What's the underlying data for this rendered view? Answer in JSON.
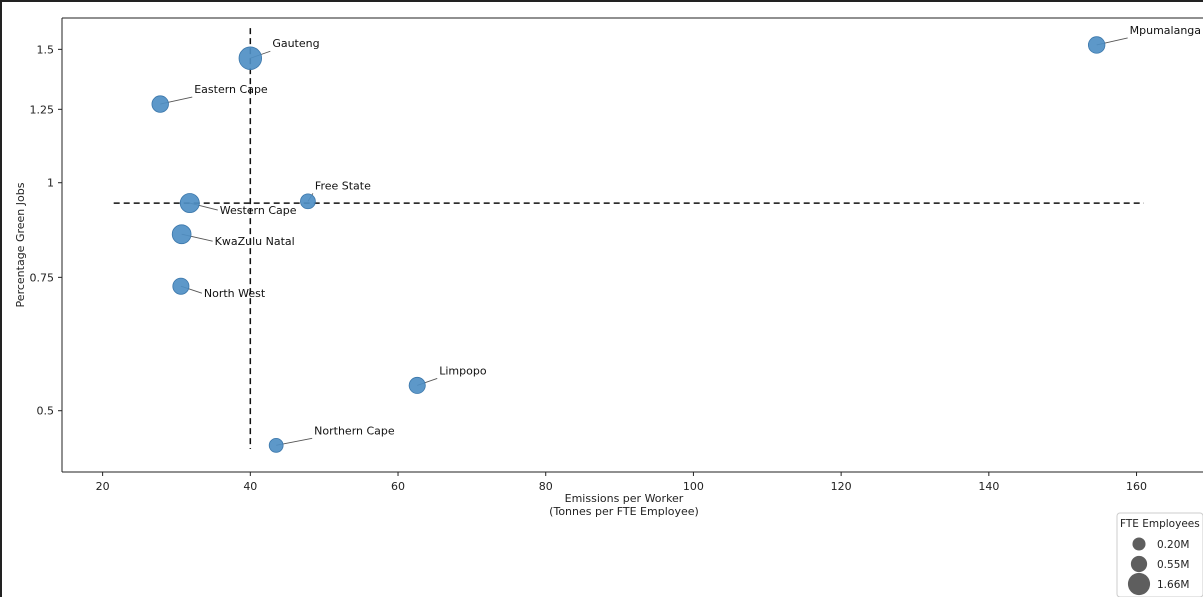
{
  "chart_data": {
    "type": "scatter",
    "xlabel": "Emissions per Worker",
    "xlabel_line2": "(Tonnes per FTE Employee)",
    "ylabel": "Percentage Green Jobs",
    "y_scale": "log",
    "xlim": [
      14.5,
      169
    ],
    "ylim": [
      0.415,
      1.65
    ],
    "x_ticks": [
      20,
      40,
      60,
      80,
      100,
      120,
      140,
      160
    ],
    "y_ticks": [
      {
        "value": 0.5,
        "label": "0.5"
      },
      {
        "value": 0.75,
        "label": "0.75"
      },
      {
        "value": 1.0,
        "label": "1"
      },
      {
        "value": 1.25,
        "label": "1.25"
      },
      {
        "value": 1.5,
        "label": "1.5"
      }
    ],
    "vline_x": 40,
    "vline_y_range": [
      0.445,
      1.6
    ],
    "hline_y": 0.94,
    "hline_x_range": [
      21.5,
      161
    ],
    "point_color": "#4f8fc4",
    "points": [
      {
        "label": "Mpumalanga",
        "x": 154.6,
        "y": 1.52,
        "fte_millions": 0.55,
        "label_dx": 33,
        "label_dy": -11
      },
      {
        "label": "Gauteng",
        "x": 40.0,
        "y": 1.46,
        "fte_millions": 1.66,
        "label_dx": 22,
        "label_dy": -11
      },
      {
        "label": "Eastern Cape",
        "x": 27.8,
        "y": 1.27,
        "fte_millions": 0.55,
        "label_dx": 34,
        "label_dy": -11
      },
      {
        "label": "Free State",
        "x": 47.8,
        "y": 0.945,
        "fte_millions": 0.35,
        "label_dx": 7,
        "label_dy": -12
      },
      {
        "label": "Western Cape",
        "x": 31.8,
        "y": 0.94,
        "fte_millions": 0.95,
        "label_dx": 30,
        "label_dy": 11
      },
      {
        "label": "KwaZulu Natal",
        "x": 30.7,
        "y": 0.855,
        "fte_millions": 0.9,
        "label_dx": 33,
        "label_dy": 11
      },
      {
        "label": "North West",
        "x": 30.6,
        "y": 0.73,
        "fte_millions": 0.5,
        "label_dx": 23,
        "label_dy": 11
      },
      {
        "label": "Limpopo",
        "x": 62.6,
        "y": 0.54,
        "fte_millions": 0.5,
        "label_dx": 22,
        "label_dy": -11
      },
      {
        "label": "Northern Cape",
        "x": 43.5,
        "y": 0.45,
        "fte_millions": 0.25,
        "label_dx": 38,
        "label_dy": -11
      }
    ],
    "legend": {
      "title": "FTE Employees",
      "placement": "bottom-right",
      "entries": [
        {
          "label": "0.20M",
          "fte_millions": 0.2
        },
        {
          "label": "0.55M",
          "fte_millions": 0.55
        },
        {
          "label": "1.66M",
          "fte_millions": 1.66
        }
      ],
      "marker_color": "#555555"
    }
  }
}
